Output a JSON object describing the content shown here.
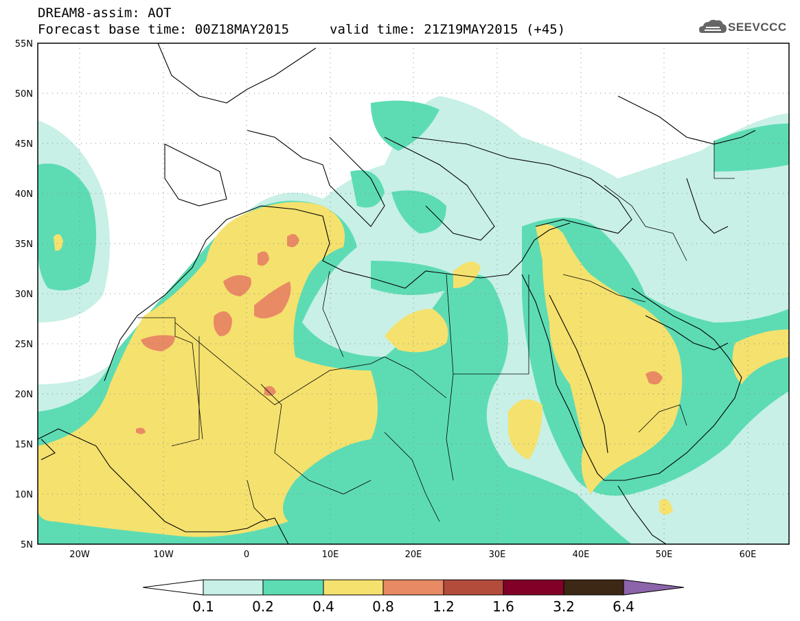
{
  "header": {
    "title": "DREAM8-assim: AOT",
    "base_time": "Forecast base time: 00Z18MAY2015",
    "valid_time": "valid time: 21Z19MAY2015 (+45)",
    "logo_text": "SEEVCCC",
    "logo_icon": "cloud-icon"
  },
  "map": {
    "lon_range": [
      -25,
      65
    ],
    "lat_range": [
      5,
      55
    ],
    "lat_labels": [
      "55N",
      "50N",
      "45N",
      "40N",
      "35N",
      "30N",
      "25N",
      "20N",
      "15N",
      "10N",
      "5N"
    ],
    "lon_labels": [
      "20W",
      "10W",
      "0",
      "10E",
      "20E",
      "30E",
      "40E",
      "50E",
      "60E"
    ],
    "grid": "dotted"
  },
  "colorbar": {
    "labels": [
      "0.1",
      "0.2",
      "0.4",
      "0.8",
      "1.2",
      "1.6",
      "3.2",
      "6.4"
    ],
    "colors": [
      "#ffffff",
      "#c8f0e6",
      "#5ddcb4",
      "#f5e16e",
      "#e88a64",
      "#b44c3c",
      "#820028",
      "#3c2814",
      "#8c64aa"
    ]
  },
  "chart_data": {
    "type": "heatmap",
    "title": "DREAM8-assim: AOT",
    "variable": "AOT",
    "levels": [
      0.1,
      0.2,
      0.4,
      0.8,
      1.2,
      1.6,
      3.2,
      6.4
    ],
    "xlim": [
      -25,
      65
    ],
    "ylim": [
      5,
      55
    ]
  }
}
